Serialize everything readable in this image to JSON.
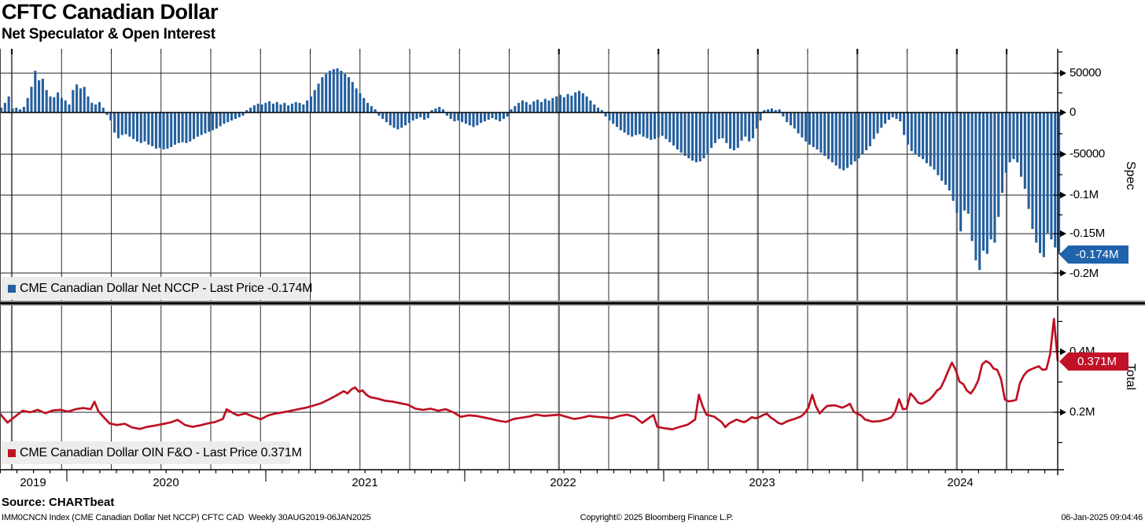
{
  "header": {
    "title": "CFTC Canadian Dollar",
    "subtitle": "Net Speculator & Open Interest"
  },
  "top_panel": {
    "axis_title": "Spec",
    "legend": "CME Canadian Dollar Net NCCP - Last Price -0.174M",
    "last_price_label": "-0.174M",
    "y_ticks": [
      "50000",
      "0",
      "-50000",
      "-0.1M",
      "-0.15M",
      "-0.2M"
    ]
  },
  "bottom_panel": {
    "axis_title": "Total",
    "legend": "CME Canadian Dollar OIN F&O - Last Price 0.371M",
    "last_price_label": "0.371M",
    "y_ticks": [
      "0.4M",
      "0.2M"
    ]
  },
  "x_axis": {
    "years": [
      "2019",
      "2020",
      "2021",
      "2022",
      "2023",
      "2024"
    ]
  },
  "footer": {
    "source": "Source: CHARTbeat",
    "ticker_line": "IMM0CNCN Index (CME Canadian Dollar Net NCCP) CFTC CAD  Weekly 30AUG2019-06JAN2025",
    "copyright": "Copyright© 2025 Bloomberg Finance L.P.",
    "timestamp": "06-Jan-2025 09:04:46"
  },
  "colors": {
    "bar_blue": "#245f9e",
    "price_box_blue": "#1e63ac",
    "line_red": "#be1122",
    "price_box_red": "#c11228",
    "grid": "#2f2f2f",
    "grid_thick": "#6e6e6e",
    "legend_bg": "#ececec"
  },
  "chart_data": [
    {
      "type": "bar",
      "name": "CME Canadian Dollar Net NCCP",
      "panel": "Spec",
      "frequency": "weekly",
      "range": "30AUG2019-06JAN2025",
      "unit": "contracts (thousands)",
      "last_price": -174000,
      "ylim": [
        -210000,
        79000
      ],
      "y_tick_values": [
        50000,
        0,
        -50000,
        -100000,
        -150000,
        -200000
      ],
      "values_thousands": [
        6,
        12,
        20,
        5,
        6,
        4,
        7,
        18,
        32,
        52,
        40,
        42,
        28,
        20,
        19,
        25,
        18,
        15,
        10,
        28,
        35,
        30,
        32,
        20,
        12,
        10,
        13,
        6,
        -3,
        -10,
        -25,
        -32,
        -28,
        -27,
        -30,
        -33,
        -36,
        -38,
        -36,
        -40,
        -42,
        -45,
        -44,
        -46,
        -45,
        -43,
        -40,
        -38,
        -37,
        -38,
        -36,
        -33,
        -30,
        -28,
        -26,
        -24,
        -22,
        -20,
        -17,
        -14,
        -12,
        -10,
        -8,
        -6,
        -4,
        3,
        6,
        9,
        11,
        10,
        12,
        14,
        11,
        13,
        10,
        12,
        9,
        11,
        13,
        12,
        10,
        15,
        20,
        28,
        36,
        44,
        48,
        52,
        54,
        55,
        52,
        48,
        44,
        38,
        30,
        24,
        18,
        12,
        8,
        4,
        -4,
        -8,
        -12,
        -16,
        -19,
        -21,
        -19,
        -16,
        -13,
        -10,
        -8,
        -6,
        -9,
        -7,
        3,
        5,
        7,
        4,
        -4,
        -8,
        -11,
        -10,
        -12,
        -14,
        -16,
        -18,
        -16,
        -13,
        -11,
        -9,
        -7,
        -9,
        -11,
        -8,
        -5,
        4,
        8,
        12,
        15,
        13,
        10,
        14,
        16,
        13,
        17,
        15,
        18,
        20,
        22,
        19,
        23,
        21,
        25,
        27,
        24,
        20,
        15,
        10,
        6,
        3,
        -5,
        -10,
        -14,
        -18,
        -22,
        -25,
        -28,
        -30,
        -28,
        -27,
        -30,
        -32,
        -34,
        -33,
        -31,
        -29,
        -33,
        -37,
        -41,
        -46,
        -50,
        -54,
        -57,
        -60,
        -62,
        -61,
        -57,
        -51,
        -44,
        -38,
        -33,
        -32,
        -38,
        -45,
        -47,
        -44,
        -35,
        -30,
        -36,
        -32,
        -20,
        -10,
        3,
        4,
        5,
        3,
        4,
        -5,
        -12,
        -16,
        -20,
        -26,
        -31,
        -36,
        -40,
        -43,
        -46,
        -50,
        -54,
        -58,
        -62,
        -66,
        -70,
        -72,
        -69,
        -65,
        -61,
        -57,
        -52,
        -47,
        -42,
        -33,
        -26,
        -19,
        -14,
        -9,
        -6,
        -8,
        -11,
        -28,
        -40,
        -48,
        -52,
        -55,
        -58,
        -63,
        -67,
        -71,
        -78,
        -85,
        -90,
        -97,
        -110,
        -125,
        -148,
        -122,
        -126,
        -160,
        -184,
        -196,
        -172,
        -176,
        -158,
        -162,
        -130,
        -100,
        -75,
        -62,
        -58,
        -62,
        -80,
        -95,
        -120,
        -145,
        -162,
        -175,
        -180,
        -150,
        -158,
        -168,
        -174
      ]
    },
    {
      "type": "line",
      "name": "CME Canadian Dollar OIN F&O",
      "panel": "Total",
      "frequency": "weekly",
      "range": "30AUG2019-06JAN2025",
      "unit": "millions of contracts",
      "last_price": 0.371,
      "ylim": [
        0.0,
        0.54
      ],
      "y_tick_values": [
        0.4,
        0.2
      ],
      "points_week_value": [
        [
          0,
          0.195
        ],
        [
          2,
          0.166
        ],
        [
          4,
          0.186
        ],
        [
          6,
          0.205
        ],
        [
          8,
          0.2
        ],
        [
          10,
          0.208
        ],
        [
          12,
          0.197
        ],
        [
          14,
          0.206
        ],
        [
          16,
          0.208
        ],
        [
          18,
          0.202
        ],
        [
          20,
          0.21
        ],
        [
          22,
          0.214
        ],
        [
          24,
          0.21
        ],
        [
          25,
          0.235
        ],
        [
          26,
          0.205
        ],
        [
          27,
          0.19
        ],
        [
          29,
          0.163
        ],
        [
          31,
          0.158
        ],
        [
          33,
          0.162
        ],
        [
          35,
          0.15
        ],
        [
          37,
          0.145
        ],
        [
          39,
          0.152
        ],
        [
          41,
          0.156
        ],
        [
          43,
          0.161
        ],
        [
          45,
          0.166
        ],
        [
          47,
          0.175
        ],
        [
          49,
          0.158
        ],
        [
          51,
          0.152
        ],
        [
          53,
          0.157
        ],
        [
          55,
          0.163
        ],
        [
          57,
          0.168
        ],
        [
          59,
          0.178
        ],
        [
          60,
          0.21
        ],
        [
          62,
          0.195
        ],
        [
          63,
          0.19
        ],
        [
          65,
          0.196
        ],
        [
          67,
          0.186
        ],
        [
          69,
          0.177
        ],
        [
          71,
          0.19
        ],
        [
          73,
          0.196
        ],
        [
          75,
          0.2
        ],
        [
          77,
          0.205
        ],
        [
          79,
          0.21
        ],
        [
          81,
          0.215
        ],
        [
          83,
          0.222
        ],
        [
          85,
          0.23
        ],
        [
          87,
          0.242
        ],
        [
          89,
          0.255
        ],
        [
          91,
          0.27
        ],
        [
          92,
          0.262
        ],
        [
          93,
          0.275
        ],
        [
          94,
          0.282
        ],
        [
          95,
          0.268
        ],
        [
          96,
          0.272
        ],
        [
          97,
          0.258
        ],
        [
          98,
          0.25
        ],
        [
          100,
          0.245
        ],
        [
          102,
          0.238
        ],
        [
          104,
          0.235
        ],
        [
          106,
          0.23
        ],
        [
          108,
          0.225
        ],
        [
          110,
          0.212
        ],
        [
          112,
          0.208
        ],
        [
          114,
          0.212
        ],
        [
          116,
          0.205
        ],
        [
          118,
          0.21
        ],
        [
          120,
          0.2
        ],
        [
          122,
          0.185
        ],
        [
          124,
          0.19
        ],
        [
          126,
          0.188
        ],
        [
          128,
          0.183
        ],
        [
          130,
          0.178
        ],
        [
          132,
          0.172
        ],
        [
          134,
          0.168
        ],
        [
          136,
          0.178
        ],
        [
          138,
          0.182
        ],
        [
          140,
          0.186
        ],
        [
          142,
          0.192
        ],
        [
          144,
          0.188
        ],
        [
          146,
          0.19
        ],
        [
          148,
          0.192
        ],
        [
          150,
          0.185
        ],
        [
          152,
          0.178
        ],
        [
          154,
          0.182
        ],
        [
          156,
          0.188
        ],
        [
          158,
          0.185
        ],
        [
          160,
          0.183
        ],
        [
          162,
          0.18
        ],
        [
          164,
          0.188
        ],
        [
          166,
          0.192
        ],
        [
          168,
          0.185
        ],
        [
          170,
          0.165
        ],
        [
          172,
          0.183
        ],
        [
          173,
          0.191
        ],
        [
          174,
          0.152
        ],
        [
          176,
          0.147
        ],
        [
          178,
          0.144
        ],
        [
          180,
          0.152
        ],
        [
          182,
          0.159
        ],
        [
          184,
          0.176
        ],
        [
          185,
          0.258
        ],
        [
          186,
          0.22
        ],
        [
          187,
          0.192
        ],
        [
          189,
          0.186
        ],
        [
          191,
          0.168
        ],
        [
          192,
          0.151
        ],
        [
          193,
          0.163
        ],
        [
          195,
          0.176
        ],
        [
          196,
          0.171
        ],
        [
          197,
          0.167
        ],
        [
          198,
          0.174
        ],
        [
          199,
          0.184
        ],
        [
          200,
          0.18
        ],
        [
          201,
          0.184
        ],
        [
          202,
          0.191
        ],
        [
          203,
          0.195
        ],
        [
          204,
          0.183
        ],
        [
          205,
          0.175
        ],
        [
          206,
          0.165
        ],
        [
          207,
          0.161
        ],
        [
          208,
          0.168
        ],
        [
          209,
          0.173
        ],
        [
          210,
          0.177
        ],
        [
          212,
          0.186
        ],
        [
          213,
          0.197
        ],
        [
          214,
          0.215
        ],
        [
          215,
          0.258
        ],
        [
          216,
          0.219
        ],
        [
          217,
          0.196
        ],
        [
          218,
          0.21
        ],
        [
          219,
          0.221
        ],
        [
          221,
          0.223
        ],
        [
          223,
          0.215
        ],
        [
          224,
          0.221
        ],
        [
          225,
          0.228
        ],
        [
          226,
          0.202
        ],
        [
          227,
          0.195
        ],
        [
          228,
          0.189
        ],
        [
          229,
          0.176
        ],
        [
          231,
          0.169
        ],
        [
          233,
          0.171
        ],
        [
          235,
          0.178
        ],
        [
          236,
          0.184
        ],
        [
          237,
          0.202
        ],
        [
          238,
          0.243
        ],
        [
          239,
          0.21
        ],
        [
          240,
          0.212
        ],
        [
          241,
          0.262
        ],
        [
          242,
          0.249
        ],
        [
          243,
          0.232
        ],
        [
          244,
          0.228
        ],
        [
          246,
          0.241
        ],
        [
          247,
          0.254
        ],
        [
          248,
          0.271
        ],
        [
          249,
          0.28
        ],
        [
          250,
          0.306
        ],
        [
          251,
          0.336
        ],
        [
          252,
          0.364
        ],
        [
          253,
          0.34
        ],
        [
          254,
          0.301
        ],
        [
          255,
          0.293
        ],
        [
          256,
          0.271
        ],
        [
          257,
          0.262
        ],
        [
          258,
          0.28
        ],
        [
          259,
          0.306
        ],
        [
          260,
          0.358
        ],
        [
          261,
          0.369
        ],
        [
          262,
          0.362
        ],
        [
          263,
          0.345
        ],
        [
          264,
          0.34
        ],
        [
          265,
          0.31
        ],
        [
          266,
          0.242
        ],
        [
          267,
          0.236
        ],
        [
          268,
          0.238
        ],
        [
          269,
          0.241
        ],
        [
          270,
          0.297
        ],
        [
          271,
          0.321
        ],
        [
          272,
          0.336
        ],
        [
          273,
          0.342
        ],
        [
          274,
          0.347
        ],
        [
          275,
          0.352
        ],
        [
          276,
          0.34
        ],
        [
          277,
          0.342
        ],
        [
          278,
          0.392
        ],
        [
          279,
          0.508
        ],
        [
          280,
          0.371
        ]
      ]
    }
  ]
}
